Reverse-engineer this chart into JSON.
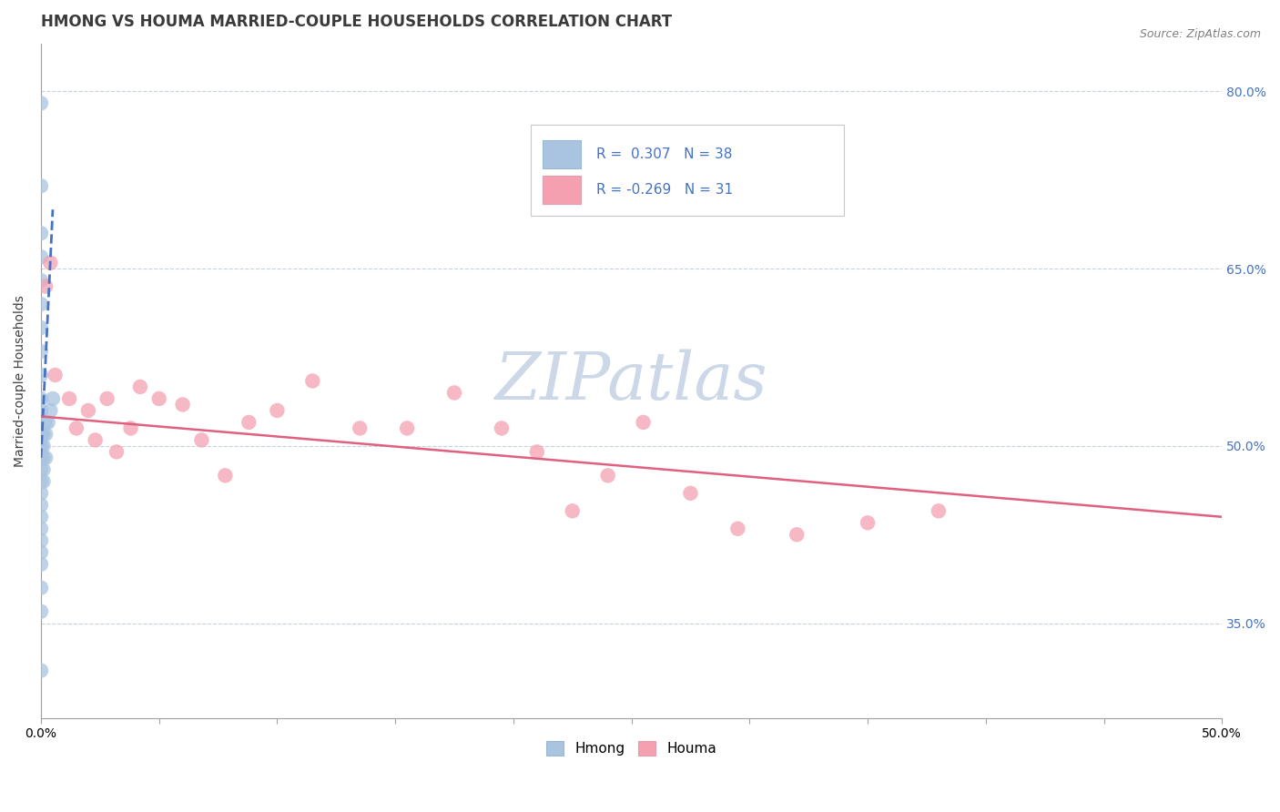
{
  "title": "HMONG VS HOUMA MARRIED-COUPLE HOUSEHOLDS CORRELATION CHART",
  "source": "Source: ZipAtlas.com",
  "ylabel": "Married-couple Households",
  "xlim": [
    0.0,
    0.5
  ],
  "ylim": [
    0.27,
    0.84
  ],
  "xticks": [
    0.0,
    0.05,
    0.1,
    0.15,
    0.2,
    0.25,
    0.3,
    0.35,
    0.4,
    0.45,
    0.5
  ],
  "xtick_labels_show": [
    "0.0%",
    "",
    "",
    "",
    "",
    "",
    "",
    "",
    "",
    "",
    "50.0%"
  ],
  "ytick_labels_right": [
    "35.0%",
    "50.0%",
    "65.0%",
    "80.0%"
  ],
  "ytick_vals_right": [
    0.35,
    0.5,
    0.65,
    0.8
  ],
  "hmong_color": "#a8c4e0",
  "houma_color": "#f4a0b0",
  "hmong_line_color": "#4472c4",
  "houma_line_color": "#e06080",
  "title_color": "#3a3a3a",
  "source_color": "#808080",
  "grid_color": "#c8d0dc",
  "watermark_color": "#ccd8e8",
  "hmong_x": [
    0.0,
    0.0,
    0.0,
    0.0,
    0.0,
    0.0,
    0.0,
    0.0,
    0.0,
    0.0,
    0.0,
    0.0,
    0.0,
    0.0,
    0.0,
    0.0,
    0.0,
    0.0,
    0.0,
    0.0,
    0.0,
    0.0,
    0.0,
    0.0,
    0.0,
    0.0,
    0.0,
    0.001,
    0.001,
    0.001,
    0.001,
    0.001,
    0.002,
    0.002,
    0.002,
    0.003,
    0.004,
    0.005
  ],
  "hmong_y": [
    0.79,
    0.72,
    0.68,
    0.66,
    0.64,
    0.62,
    0.6,
    0.58,
    0.56,
    0.54,
    0.53,
    0.51,
    0.5,
    0.5,
    0.49,
    0.48,
    0.47,
    0.46,
    0.45,
    0.44,
    0.43,
    0.42,
    0.41,
    0.4,
    0.38,
    0.36,
    0.31,
    0.51,
    0.5,
    0.49,
    0.48,
    0.47,
    0.52,
    0.51,
    0.49,
    0.52,
    0.53,
    0.54
  ],
  "houma_x": [
    0.002,
    0.004,
    0.006,
    0.012,
    0.015,
    0.02,
    0.023,
    0.028,
    0.032,
    0.038,
    0.042,
    0.05,
    0.06,
    0.068,
    0.078,
    0.088,
    0.1,
    0.115,
    0.135,
    0.155,
    0.175,
    0.195,
    0.21,
    0.225,
    0.24,
    0.255,
    0.275,
    0.295,
    0.32,
    0.35,
    0.38
  ],
  "houma_y": [
    0.635,
    0.655,
    0.56,
    0.54,
    0.515,
    0.53,
    0.505,
    0.54,
    0.495,
    0.515,
    0.55,
    0.54,
    0.535,
    0.505,
    0.475,
    0.52,
    0.53,
    0.555,
    0.515,
    0.515,
    0.545,
    0.515,
    0.495,
    0.445,
    0.475,
    0.52,
    0.46,
    0.43,
    0.425,
    0.435,
    0.445
  ],
  "hmong_trend_x": [
    0.0,
    0.005
  ],
  "hmong_trend_y": [
    0.49,
    0.7
  ],
  "houma_trend_x": [
    0.0,
    0.5
  ],
  "houma_trend_y": [
    0.525,
    0.44
  ],
  "title_fontsize": 12,
  "label_fontsize": 10,
  "tick_fontsize": 10,
  "legend_r1_text": "R =  0.307   N = 38",
  "legend_r2_text": "R = -0.269   N = 31"
}
